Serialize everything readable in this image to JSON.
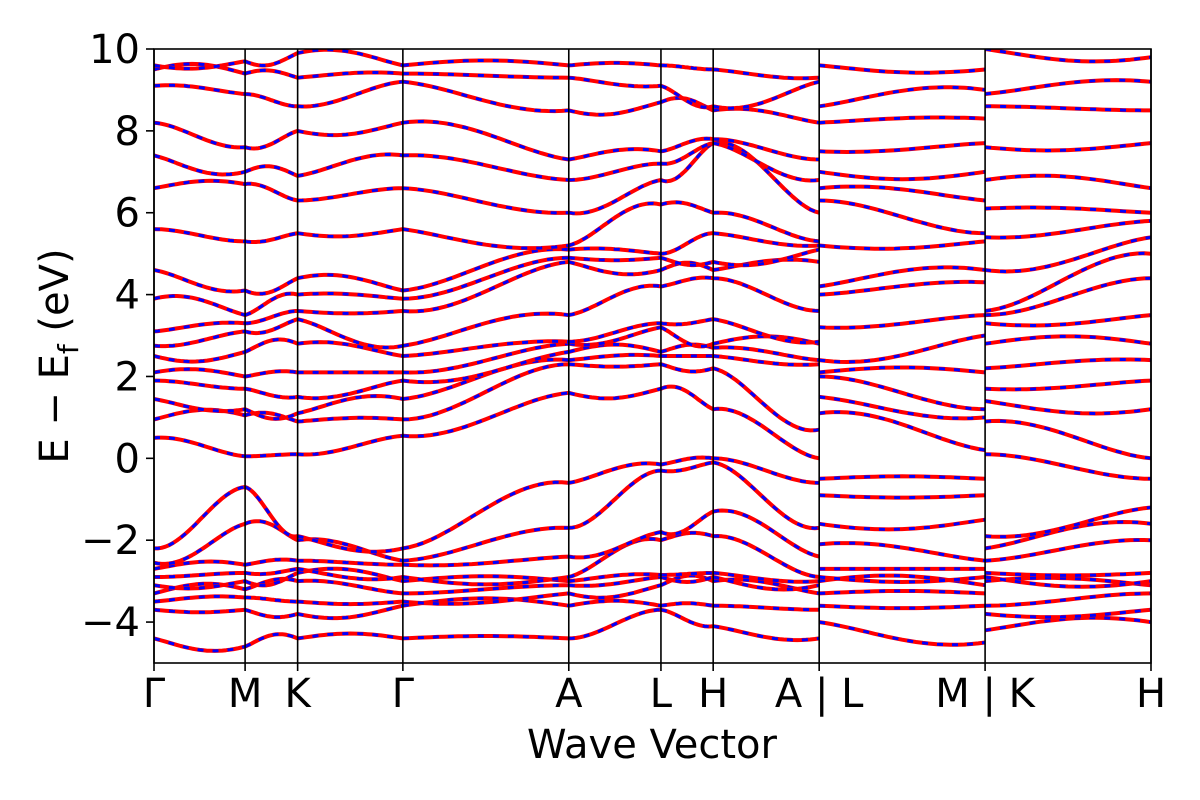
{
  "chart_data": {
    "type": "line",
    "title": "",
    "xlabel": "Wave Vector",
    "ylabel": "E − E",
    "ylabel_sub": "f",
    "ylabel_unit": " (eV)",
    "ylim": [
      -5,
      10
    ],
    "yticks": [
      -4,
      -2,
      0,
      2,
      4,
      6,
      8,
      10
    ],
    "ytick_labels": [
      "−4",
      "−2",
      "0",
      "2",
      "4",
      "6",
      "8",
      "10"
    ],
    "xlim": [
      0,
      6.49
    ],
    "kpoints": [
      {
        "label": "Γ",
        "x": 0.0
      },
      {
        "label": "M",
        "x": 0.593
      },
      {
        "label": "K",
        "x": 0.935
      },
      {
        "label": "Γ",
        "x": 1.62
      },
      {
        "label": "A",
        "x": 2.7
      },
      {
        "label": "L",
        "x": 3.3
      },
      {
        "label": "H",
        "x": 3.64
      },
      {
        "label": "A | L",
        "x": 4.33
      },
      {
        "label": "M | K",
        "x": 5.41
      },
      {
        "label": "H",
        "x": 6.49
      }
    ],
    "segments": [
      {
        "from": "Γ",
        "to": "M",
        "x0": 0.0,
        "x1": 0.593
      },
      {
        "from": "M",
        "to": "K",
        "x0": 0.593,
        "x1": 0.935
      },
      {
        "from": "K",
        "to": "Γ",
        "x0": 0.935,
        "x1": 1.62
      },
      {
        "from": "Γ",
        "to": "A",
        "x0": 1.62,
        "x1": 2.7
      },
      {
        "from": "A",
        "to": "L",
        "x0": 2.7,
        "x1": 3.3
      },
      {
        "from": "L",
        "to": "H",
        "x0": 3.3,
        "x1": 3.64
      },
      {
        "from": "H",
        "to": "A",
        "x0": 3.64,
        "x1": 4.33
      },
      {
        "from": "L",
        "to": "M",
        "x0": 4.33,
        "x1": 5.41
      },
      {
        "from": "K",
        "to": "H",
        "x0": 5.41,
        "x1": 6.49
      }
    ],
    "band_energies_at_kpoints": {
      "Γ1": [
        -4.4,
        -3.7,
        -3.5,
        -3.3,
        -3.1,
        -2.9,
        -2.7,
        -2.55,
        -2.2,
        0.5,
        0.95,
        1.45,
        1.9,
        2.1,
        2.5,
        2.75,
        3.1,
        3.9,
        4.6,
        5.6,
        6.6,
        7.4,
        8.2,
        9.1,
        9.5,
        9.6
      ],
      "M": [
        -4.6,
        -3.7,
        -3.4,
        -3.2,
        -3.0,
        -2.8,
        -2.6,
        -1.6,
        -0.7,
        0.05,
        1.05,
        1.2,
        1.7,
        2.0,
        2.6,
        3.1,
        3.3,
        3.5,
        4.1,
        5.3,
        6.7,
        7.0,
        7.6,
        8.9,
        9.4,
        9.7
      ],
      "K": [
        -4.4,
        -3.8,
        -3.5,
        -3.0,
        -2.8,
        -2.7,
        -2.5,
        -2.0,
        -1.9,
        0.1,
        0.9,
        1.1,
        1.5,
        2.1,
        2.8,
        3.4,
        3.6,
        4.0,
        4.4,
        5.5,
        6.3,
        6.9,
        8.0,
        8.6,
        9.3,
        9.9
      ],
      "Γ2": [
        -4.4,
        -3.6,
        -3.5,
        -3.3,
        -3.0,
        -2.9,
        -2.6,
        -2.5,
        -2.2,
        0.55,
        0.95,
        1.45,
        1.9,
        2.1,
        2.5,
        2.75,
        3.6,
        3.9,
        4.1,
        5.6,
        6.6,
        7.4,
        8.2,
        9.2,
        9.4,
        9.6
      ],
      "A": [
        -4.4,
        -3.6,
        -3.3,
        -3.1,
        -3.0,
        -2.9,
        -2.4,
        -1.7,
        -0.6,
        1.6,
        2.3,
        2.4,
        2.6,
        2.8,
        2.85,
        3.5,
        4.8,
        4.9,
        5.1,
        5.2,
        6.0,
        6.8,
        7.3,
        8.5,
        9.3,
        9.6
      ],
      "L": [
        -3.7,
        -3.6,
        -3.1,
        -2.9,
        -2.85,
        -2.0,
        -1.8,
        -0.3,
        -0.15,
        1.7,
        2.3,
        2.5,
        2.6,
        3.2,
        3.3,
        4.2,
        4.6,
        4.9,
        5.0,
        6.2,
        6.8,
        7.2,
        7.5,
        8.7,
        9.1,
        9.6
      ],
      "H": [
        -4.1,
        -3.6,
        -3.0,
        -2.9,
        -2.8,
        -1.9,
        -1.3,
        -0.1,
        0.0,
        1.2,
        2.2,
        2.5,
        2.7,
        2.8,
        3.4,
        4.4,
        4.6,
        4.8,
        5.5,
        6.0,
        7.7,
        7.7,
        7.8,
        8.5,
        8.6,
        9.5
      ],
      "A2": [
        -4.4,
        -3.7,
        -3.3,
        -3.1,
        -3.0,
        -2.9,
        -2.4,
        -1.7,
        -0.6,
        0.0,
        0.7,
        2.3,
        2.4,
        2.8,
        2.85,
        3.6,
        4.8,
        5.1,
        5.2,
        5.3,
        6.0,
        6.8,
        7.3,
        8.2,
        9.2,
        9.3
      ],
      "L2": [
        -4.0,
        -3.6,
        -3.3,
        -3.0,
        -2.9,
        -2.7,
        -2.1,
        -1.6,
        -0.9,
        -0.5,
        1.1,
        1.5,
        2.0,
        2.1,
        2.4,
        3.2,
        4.0,
        4.2,
        5.2,
        6.3,
        6.6,
        7.0,
        7.5,
        8.2,
        8.6,
        9.6
      ],
      "M2": [
        -4.5,
        -3.6,
        -3.3,
        -3.1,
        -2.9,
        -2.7,
        -2.5,
        -1.5,
        -0.9,
        -0.5,
        0.2,
        1.0,
        1.2,
        2.1,
        3.0,
        3.5,
        4.3,
        4.6,
        5.3,
        5.5,
        6.3,
        7.0,
        7.7,
        8.3,
        9.0,
        9.5
      ],
      "K2": [
        -4.2,
        -3.8,
        -3.6,
        -3.0,
        -2.9,
        -2.8,
        -2.5,
        -2.2,
        -1.9,
        0.1,
        0.9,
        1.4,
        1.7,
        2.2,
        2.8,
        3.3,
        3.5,
        3.6,
        4.6,
        5.4,
        6.1,
        6.8,
        7.6,
        8.6,
        8.9,
        10.0
      ],
      "H2": [
        -4.0,
        -3.7,
        -3.3,
        -3.1,
        -3.0,
        -2.8,
        -2.0,
        -1.6,
        -1.2,
        -0.5,
        0.0,
        1.2,
        1.9,
        2.4,
        2.8,
        3.5,
        4.4,
        5.0,
        5.4,
        5.8,
        6.0,
        6.6,
        7.7,
        8.5,
        9.2,
        9.8
      ]
    },
    "series": [
      {
        "color": "#ff0000",
        "style": "solid"
      },
      {
        "color": "#0000ff",
        "style": "dashed"
      }
    ],
    "grid": false,
    "legend": "none"
  }
}
